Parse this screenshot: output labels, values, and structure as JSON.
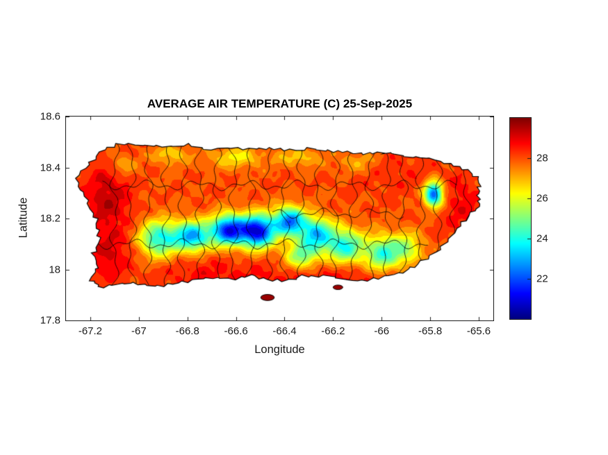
{
  "figure": {
    "background": "#ffffff",
    "axes_color": "#1a1a1a"
  },
  "chart_data": {
    "type": "heatmap",
    "title": "AVERAGE AIR TEMPERATURE (C) 25-Sep-2025",
    "xlabel": "Longitude",
    "ylabel": "Latitude",
    "xlim": [
      -67.3,
      -65.54
    ],
    "ylim": [
      17.8,
      18.6
    ],
    "x_ticks": [
      -67.2,
      -67,
      -66.8,
      -66.6,
      -66.4,
      -66.2,
      -66,
      -65.8,
      -65.6
    ],
    "x_tick_labels": [
      "-67.2",
      "-67",
      "-66.8",
      "-66.6",
      "-66.4",
      "-66.2",
      "-66",
      "-65.8",
      "-65.6"
    ],
    "y_ticks": [
      17.8,
      18,
      18.2,
      18.4,
      18.6
    ],
    "y_tick_labels": [
      "17.8",
      "18",
      "18.2",
      "18.4",
      "18.6"
    ],
    "grid": false,
    "colorbar": {
      "clim": [
        20,
        30
      ],
      "ticks": [
        22,
        24,
        26,
        28
      ],
      "tick_labels": [
        "22",
        "24",
        "26",
        "28"
      ],
      "colormap": "jet",
      "position": "right"
    },
    "contour_interval_c": 0.5,
    "field": {
      "description": "Average air temperature (C) over Puerto Rico; warm coasts ~28-29C, cool central cordillera ~20-23C, cool spot at El Yunque",
      "base_temp_c": 28.0,
      "anomaly_format": [
        "lon",
        "lat",
        "amplitude_c",
        "sigma_lon_deg",
        "sigma_lat_deg"
      ],
      "warm_anomalies": [
        [
          -67.13,
          18.28,
          1.4,
          0.065,
          0.1
        ],
        [
          -67.13,
          18.05,
          1.0,
          0.07,
          0.07
        ],
        [
          -66.25,
          17.97,
          0.8,
          0.25,
          0.05
        ],
        [
          -66.75,
          17.98,
          0.6,
          0.12,
          0.05
        ],
        [
          -65.67,
          18.25,
          0.8,
          0.06,
          0.09
        ],
        [
          -65.95,
          18.38,
          0.4,
          0.12,
          0.06
        ]
      ],
      "cool_anomalies": [
        [
          -66.92,
          18.12,
          4.0,
          0.055,
          0.05
        ],
        [
          -66.78,
          18.13,
          5.0,
          0.055,
          0.042
        ],
        [
          -66.63,
          18.155,
          6.5,
          0.05,
          0.042
        ],
        [
          -66.51,
          18.15,
          7.0,
          0.05,
          0.045
        ],
        [
          -66.38,
          18.19,
          5.5,
          0.045,
          0.04
        ],
        [
          -66.27,
          18.14,
          4.5,
          0.05,
          0.045
        ],
        [
          -66.15,
          18.09,
          4.0,
          0.055,
          0.05
        ],
        [
          -66.33,
          18.05,
          3.0,
          0.05,
          0.04
        ],
        [
          -66.0,
          18.06,
          3.5,
          0.05,
          0.05
        ],
        [
          -65.9,
          18.08,
          2.5,
          0.05,
          0.045
        ],
        [
          -65.785,
          18.295,
          6.0,
          0.027,
          0.034
        ],
        [
          -66.6,
          18.44,
          1.6,
          0.08,
          0.03
        ],
        [
          -66.87,
          18.45,
          1.4,
          0.05,
          0.027
        ],
        [
          -66.34,
          18.44,
          1.3,
          0.06,
          0.027
        ],
        [
          -67.07,
          18.41,
          1.2,
          0.04,
          0.03
        ],
        [
          -66.1,
          18.42,
          1.0,
          0.06,
          0.03
        ]
      ]
    },
    "coastline": [
      [
        -67.16,
        18.46
      ],
      [
        -67.09,
        18.49
      ],
      [
        -66.99,
        18.49
      ],
      [
        -66.9,
        18.485
      ],
      [
        -66.8,
        18.49
      ],
      [
        -66.7,
        18.47
      ],
      [
        -66.62,
        18.475
      ],
      [
        -66.52,
        18.47
      ],
      [
        -66.44,
        18.475
      ],
      [
        -66.36,
        18.465
      ],
      [
        -66.3,
        18.475
      ],
      [
        -66.22,
        18.465
      ],
      [
        -66.14,
        18.46
      ],
      [
        -66.07,
        18.455
      ],
      [
        -66.0,
        18.46
      ],
      [
        -65.94,
        18.455
      ],
      [
        -65.86,
        18.44
      ],
      [
        -65.78,
        18.43
      ],
      [
        -65.7,
        18.41
      ],
      [
        -65.63,
        18.38
      ],
      [
        -65.59,
        18.34
      ],
      [
        -65.61,
        18.3
      ],
      [
        -65.59,
        18.26
      ],
      [
        -65.63,
        18.22
      ],
      [
        -65.68,
        18.17
      ],
      [
        -65.72,
        18.12
      ],
      [
        -65.78,
        18.07
      ],
      [
        -65.85,
        18.02
      ],
      [
        -65.91,
        17.99
      ],
      [
        -65.99,
        17.97
      ],
      [
        -66.08,
        17.955
      ],
      [
        -66.16,
        17.96
      ],
      [
        -66.24,
        17.975
      ],
      [
        -66.33,
        17.975
      ],
      [
        -66.39,
        17.955
      ],
      [
        -66.47,
        17.96
      ],
      [
        -66.54,
        17.975
      ],
      [
        -66.62,
        17.96
      ],
      [
        -66.7,
        17.965
      ],
      [
        -66.78,
        17.955
      ],
      [
        -66.86,
        17.945
      ],
      [
        -66.94,
        17.93
      ],
      [
        -67.02,
        17.945
      ],
      [
        -67.09,
        17.94
      ],
      [
        -67.16,
        17.93
      ],
      [
        -67.2,
        17.96
      ],
      [
        -67.17,
        18.01
      ],
      [
        -67.19,
        18.06
      ],
      [
        -67.16,
        18.12
      ],
      [
        -67.17,
        18.18
      ],
      [
        -67.2,
        18.24
      ],
      [
        -67.23,
        18.3
      ],
      [
        -67.26,
        18.36
      ],
      [
        -67.21,
        18.41
      ]
    ],
    "islets": [
      {
        "lon": -66.47,
        "lat": 17.89,
        "rx": 0.028,
        "ry": 0.012
      },
      {
        "lon": -66.18,
        "lat": 17.93,
        "rx": 0.02,
        "ry": 0.009
      }
    ],
    "boundaries": {
      "meridians": [
        -67.1,
        -67.03,
        -66.96,
        -66.89,
        -66.82,
        -66.75,
        -66.68,
        -66.61,
        -66.54,
        -66.47,
        -66.4,
        -66.33,
        -66.26,
        -66.19,
        -66.12,
        -66.05,
        -65.98,
        -65.91,
        -65.84,
        -65.77,
        -65.7,
        -65.65
      ],
      "parallels": [
        {
          "lat": 18.33,
          "lon_min": -67.15,
          "lon_max": -65.68
        },
        {
          "lat": 18.1,
          "lon_min": -67.17,
          "lon_max": -65.8
        },
        {
          "lat": 18.22,
          "lon_min": -66.45,
          "lon_max": -65.9
        }
      ],
      "wiggle_deg": 0.018
    }
  }
}
